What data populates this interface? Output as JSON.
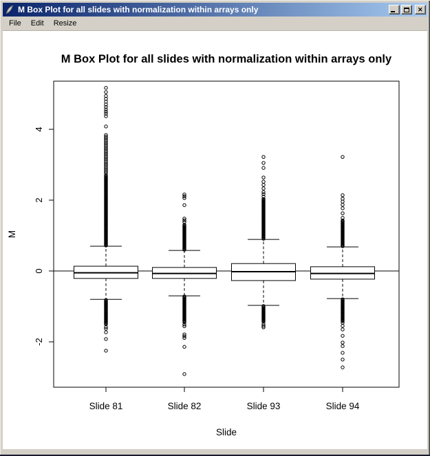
{
  "window": {
    "title": "M Box Plot for all slides with normalization within arrays only",
    "app_icon": "feather-icon"
  },
  "window_controls": {
    "minimize": "minimize",
    "maximize": "maximize",
    "close": "close"
  },
  "menu": {
    "items": [
      "File",
      "Edit",
      "Resize"
    ]
  },
  "colors": {
    "titlebar_left": "#0A246A",
    "titlebar_right": "#A6CAF0",
    "face": "#D4D0C8",
    "plot_foreground": "#000000",
    "client_background": "#ffffff"
  },
  "chart_data": {
    "type": "boxplot",
    "title": "M Box Plot for all slides with normalization within arrays only",
    "xlabel": "Slide",
    "ylabel": "M",
    "categories": [
      "Slide 81",
      "Slide 82",
      "Slide 93",
      "Slide 94"
    ],
    "yticks": [
      -2,
      0,
      2,
      4
    ],
    "ylim": [
      -3.281,
      5.359
    ],
    "refline": 0,
    "grid": false,
    "series": [
      {
        "name": "Slide 81",
        "q1": -0.21,
        "median": -0.05,
        "q3": 0.135,
        "whisker_low": -0.8,
        "whisker_high": 0.7,
        "outlier_runs": [
          [
            0.72,
            2.7,
            0.022
          ],
          [
            2.76,
            3.88,
            0.045
          ],
          [
            -0.82,
            -1.52,
            0.022
          ]
        ],
        "outliers": [
          4.08,
          4.37,
          4.44,
          4.5,
          4.56,
          4.63,
          4.7,
          4.78,
          4.86,
          4.94,
          5.05,
          5.17,
          -1.58,
          -1.63,
          -1.73,
          -1.92,
          -2.25
        ]
      },
      {
        "name": "Slide 82",
        "q1": -0.21,
        "median": -0.07,
        "q3": 0.1,
        "whisker_low": -0.7,
        "whisker_high": 0.58,
        "outlier_runs": [
          [
            0.6,
            1.32,
            0.022
          ],
          [
            -0.72,
            -1.46,
            0.022
          ]
        ],
        "outliers": [
          1.38,
          1.43,
          1.48,
          1.86,
          2.06,
          2.11,
          2.16,
          -1.51,
          -1.56,
          -1.79,
          -1.84,
          -1.89,
          -2.14,
          -2.91
        ]
      },
      {
        "name": "Slide 93",
        "q1": -0.27,
        "median": -0.02,
        "q3": 0.21,
        "whisker_low": -0.97,
        "whisker_high": 0.89,
        "outlier_runs": [
          [
            0.91,
            2.04,
            0.022
          ],
          [
            -0.99,
            -1.45,
            0.022
          ]
        ],
        "outliers": [
          2.1,
          2.17,
          2.23,
          2.33,
          2.43,
          2.52,
          2.64,
          2.91,
          3.05,
          3.22,
          -1.5,
          -1.55,
          -1.59
        ]
      },
      {
        "name": "Slide 94",
        "q1": -0.23,
        "median": -0.07,
        "q3": 0.12,
        "whisker_low": -0.78,
        "whisker_high": 0.68,
        "outlier_runs": [
          [
            0.7,
            1.44,
            0.022
          ],
          [
            -0.8,
            -1.42,
            0.022
          ]
        ],
        "outliers": [
          1.5,
          1.63,
          1.77,
          1.87,
          1.96,
          2.04,
          2.14,
          3.22,
          -1.46,
          -1.55,
          -1.65,
          -1.83,
          -2.02,
          -2.12,
          -2.31,
          -2.5,
          -2.72
        ]
      }
    ]
  }
}
